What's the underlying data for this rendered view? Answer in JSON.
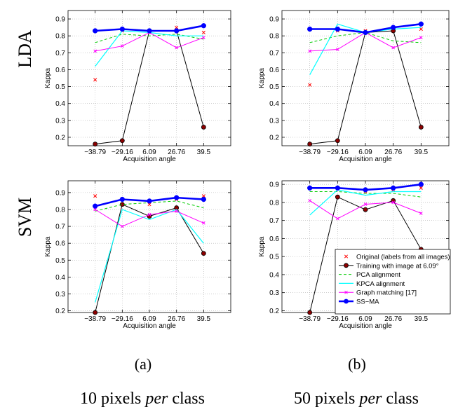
{
  "row_labels": [
    "LDA",
    "SVM"
  ],
  "panel_labels": [
    "(a)",
    "(b)"
  ],
  "column_captions": [
    {
      "pre": "10 pixels ",
      "em": "per",
      "post": " class"
    },
    {
      "pre": "50 pixels ",
      "em": "per",
      "post": " class"
    }
  ],
  "colors": {
    "original": "#ff0000",
    "training": "#000000",
    "training_fill": "#8b0000",
    "pca": "#00cc00",
    "kpca": "#00ffff",
    "graph": "#ff00ff",
    "ssma": "#0000ff"
  },
  "legend": {
    "items": [
      {
        "key": "original",
        "label": "Original (labels from all images)",
        "style": "x"
      },
      {
        "key": "training",
        "label": "Training with image at 6.09°",
        "style": "line-circle"
      },
      {
        "key": "pca",
        "label": "PCA alignment",
        "style": "dashed"
      },
      {
        "key": "kpca",
        "label": "KPCA alignment",
        "style": "line"
      },
      {
        "key": "graph",
        "label": "Graph matching [17]",
        "style": "line-x"
      },
      {
        "key": "ssma",
        "label": "SS−MA",
        "style": "thick-circle"
      }
    ]
  },
  "chart_data": [
    {
      "type": "line",
      "panel": "LDA-10",
      "xlabel": "Acquisition angle",
      "ylabel": "Kappa",
      "categories": [
        "−38.79",
        "−29.16",
        "6.09",
        "26.76",
        "39.5"
      ],
      "ylim": [
        0.15,
        0.95
      ],
      "yticks": [
        0.2,
        0.3,
        0.4,
        0.5,
        0.6,
        0.7,
        0.8,
        0.9
      ],
      "ytick_labels": [
        "0.2",
        "0.3",
        "0.4",
        "0.5",
        "0.6",
        "0.7",
        "0.8",
        "0.9"
      ],
      "grid": true,
      "series": [
        {
          "key": "original",
          "values": [
            0.54,
            0.83,
            0.83,
            0.85,
            0.82
          ]
        },
        {
          "key": "training",
          "values": [
            0.16,
            0.18,
            0.83,
            0.83,
            0.26
          ]
        },
        {
          "key": "pca",
          "values": [
            0.76,
            0.81,
            0.8,
            0.81,
            0.78
          ]
        },
        {
          "key": "kpca",
          "values": [
            0.62,
            0.83,
            0.82,
            0.8,
            0.8
          ]
        },
        {
          "key": "graph",
          "values": [
            0.71,
            0.74,
            0.82,
            0.73,
            0.79
          ]
        },
        {
          "key": "ssma",
          "values": [
            0.83,
            0.84,
            0.83,
            0.83,
            0.86
          ]
        }
      ]
    },
    {
      "type": "line",
      "panel": "LDA-50",
      "xlabel": "Acquisition angle",
      "ylabel": "Kappa",
      "categories": [
        "−38.79",
        "−29.16",
        "6.09",
        "26.76",
        "39.5"
      ],
      "ylim": [
        0.15,
        0.95
      ],
      "yticks": [
        0.2,
        0.3,
        0.4,
        0.5,
        0.6,
        0.7,
        0.8,
        0.9
      ],
      "ytick_labels": [
        "0.2",
        "0.3",
        "0.4",
        "0.5",
        "0.6",
        "0.7",
        "0.8",
        "0.9"
      ],
      "grid": true,
      "series": [
        {
          "key": "original",
          "values": [
            0.51,
            0.83,
            0.83,
            0.84,
            0.84
          ]
        },
        {
          "key": "training",
          "values": [
            0.16,
            0.18,
            0.82,
            0.83,
            0.26
          ]
        },
        {
          "key": "pca",
          "values": [
            0.76,
            0.8,
            0.82,
            0.77,
            0.76
          ]
        },
        {
          "key": "kpca",
          "values": [
            0.57,
            0.87,
            0.82,
            0.84,
            0.85
          ]
        },
        {
          "key": "graph",
          "values": [
            0.71,
            0.72,
            0.82,
            0.73,
            0.79
          ]
        },
        {
          "key": "ssma",
          "values": [
            0.84,
            0.84,
            0.82,
            0.85,
            0.87
          ]
        }
      ]
    },
    {
      "type": "line",
      "panel": "SVM-10",
      "xlabel": "Acquisition angle",
      "ylabel": "Kappa",
      "categories": [
        "−38.79",
        "−29.16",
        "6.09",
        "26.76",
        "39.5"
      ],
      "ylim": [
        0.19,
        0.97
      ],
      "yticks": [
        0.2,
        0.3,
        0.4,
        0.5,
        0.6,
        0.7,
        0.8,
        0.9
      ],
      "ytick_labels": [
        "0.2",
        "0.3",
        "0.4",
        "0.5",
        "0.6",
        "0.7",
        "0.8",
        "0.9"
      ],
      "grid": true,
      "series": [
        {
          "key": "original",
          "values": [
            0.88,
            0.83,
            0.83,
            0.86,
            0.88
          ]
        },
        {
          "key": "training",
          "values": [
            0.19,
            0.83,
            0.76,
            0.81,
            0.54
          ]
        },
        {
          "key": "pca",
          "values": [
            0.79,
            0.83,
            0.84,
            0.85,
            0.81
          ]
        },
        {
          "key": "kpca",
          "values": [
            0.25,
            0.8,
            0.74,
            0.8,
            0.6
          ]
        },
        {
          "key": "graph",
          "values": [
            0.8,
            0.7,
            0.77,
            0.79,
            0.72
          ]
        },
        {
          "key": "ssma",
          "values": [
            0.82,
            0.86,
            0.85,
            0.87,
            0.86
          ]
        }
      ]
    },
    {
      "type": "line",
      "panel": "SVM-50",
      "xlabel": "Acquisition angle",
      "ylabel": "Kappa",
      "categories": [
        "−38.79",
        "−29.16",
        "6.09",
        "26.76",
        "39.5"
      ],
      "ylim": [
        0.19,
        0.92
      ],
      "yticks": [
        0.2,
        0.3,
        0.4,
        0.5,
        0.6,
        0.7,
        0.8,
        0.9
      ],
      "ytick_labels": [
        "0.2",
        "0.3",
        "0.4",
        "0.5",
        "0.6",
        "0.7",
        "0.8",
        "0.9"
      ],
      "grid": true,
      "series": [
        {
          "key": "original",
          "values": [
            0.88,
            0.88,
            0.86,
            0.87,
            0.88
          ]
        },
        {
          "key": "training",
          "values": [
            0.19,
            0.83,
            0.76,
            0.81,
            0.54
          ]
        },
        {
          "key": "pca",
          "values": [
            0.86,
            0.86,
            0.85,
            0.85,
            0.83
          ]
        },
        {
          "key": "kpca",
          "values": [
            0.73,
            0.87,
            0.84,
            0.86,
            0.86
          ]
        },
        {
          "key": "graph",
          "values": [
            0.81,
            0.71,
            0.79,
            0.8,
            0.74
          ]
        },
        {
          "key": "ssma",
          "values": [
            0.88,
            0.88,
            0.87,
            0.88,
            0.9
          ]
        }
      ]
    }
  ]
}
